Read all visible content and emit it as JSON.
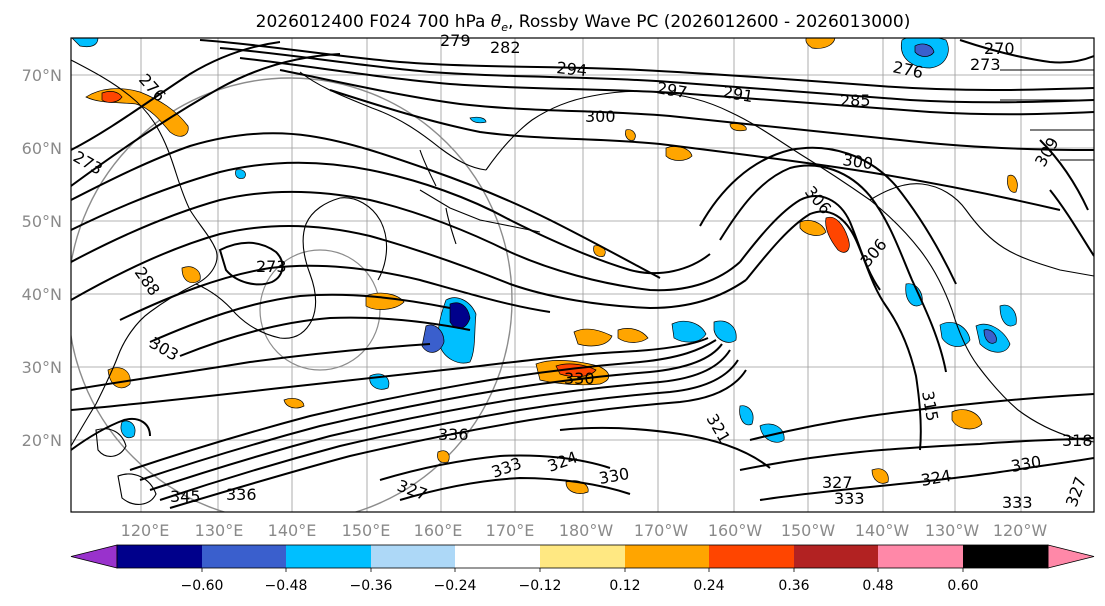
{
  "title": {
    "prefix": "2026012400 F024 700 hPa ",
    "symbol": "θ",
    "subscript": "e",
    "suffix": ", Rossby Wave PC (2026012600 - 2026013000)"
  },
  "map": {
    "lat_labels": [
      "70°N",
      "60°N",
      "50°N",
      "40°N",
      "30°N",
      "20°N"
    ],
    "lon_labels": [
      "120°E",
      "130°E",
      "140°E",
      "150°E",
      "160°E",
      "170°E",
      "180°W",
      "170°W",
      "160°W",
      "150°W",
      "140°W",
      "130°W",
      "120°W"
    ],
    "contour_labels": [
      {
        "text": "276"
      },
      {
        "text": "273"
      },
      {
        "text": "279"
      },
      {
        "text": "282"
      },
      {
        "text": "294"
      },
      {
        "text": "297"
      },
      {
        "text": "291"
      },
      {
        "text": "285"
      },
      {
        "text": "270"
      },
      {
        "text": "276"
      },
      {
        "text": "273"
      },
      {
        "text": "300"
      },
      {
        "text": "300"
      },
      {
        "text": "306"
      },
      {
        "text": "306"
      },
      {
        "text": "273"
      },
      {
        "text": "288"
      },
      {
        "text": "303"
      },
      {
        "text": "330"
      },
      {
        "text": "336"
      },
      {
        "text": "321"
      },
      {
        "text": "315"
      },
      {
        "text": "333"
      },
      {
        "text": "324"
      },
      {
        "text": "330"
      },
      {
        "text": "327"
      },
      {
        "text": "345"
      },
      {
        "text": "336"
      },
      {
        "text": "327"
      },
      {
        "text": "333"
      },
      {
        "text": "324"
      },
      {
        "text": "330"
      },
      {
        "text": "333"
      },
      {
        "text": "318"
      },
      {
        "text": "327"
      },
      {
        "text": "309"
      }
    ]
  },
  "colorbar": {
    "colors": [
      "#9932CC",
      "#00008B",
      "#3A5FCD",
      "#00BFFF",
      "#ADD8F7",
      "#FFFFFF",
      "#FFE882",
      "#FFA500",
      "#FF4500",
      "#B22222",
      "#FF88A8"
    ],
    "tick_labels": [
      "−0.60",
      "−0.48",
      "−0.36",
      "−0.24",
      "−0.12",
      "0.12",
      "0.24",
      "0.36",
      "0.48",
      "0.60"
    ]
  }
}
